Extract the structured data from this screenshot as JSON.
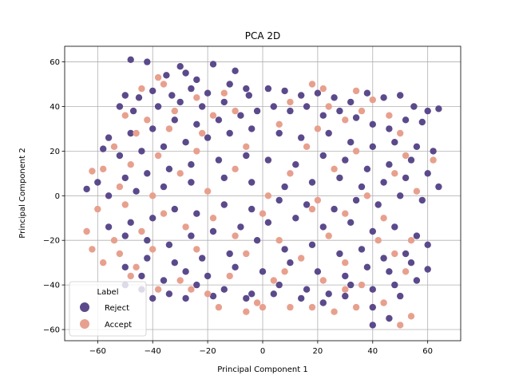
{
  "chart_data": {
    "type": "scatter",
    "title": "PCA 2D",
    "xlabel": "Principal Component 1",
    "ylabel": "Principal Component 2",
    "xlim": [
      -72,
      72
    ],
    "ylim": [
      -65,
      67
    ],
    "xticks": [
      -60,
      -40,
      -20,
      0,
      20,
      40,
      60
    ],
    "yticks": [
      -60,
      -40,
      -20,
      0,
      20,
      40,
      60
    ],
    "grid": true,
    "legend": {
      "title": "Label",
      "placement": "lower-left",
      "entries": [
        "Reject",
        "Accept"
      ]
    },
    "colors": {
      "Reject": "#5b4a8b",
      "Accept": "#e8a08e"
    },
    "series": [
      {
        "name": "Reject",
        "points": [
          [
            -48,
            61
          ],
          [
            -42,
            60
          ],
          [
            -30,
            58
          ],
          [
            -18,
            59
          ],
          [
            -28,
            55
          ],
          [
            -35,
            54
          ],
          [
            -24,
            52
          ],
          [
            -10,
            56
          ],
          [
            -50,
            45
          ],
          [
            -45,
            44
          ],
          [
            -40,
            47
          ],
          [
            -33,
            45
          ],
          [
            -26,
            48
          ],
          [
            -20,
            46
          ],
          [
            -12,
            50
          ],
          [
            -6,
            48
          ],
          [
            -52,
            40
          ],
          [
            -47,
            38
          ],
          [
            -38,
            40
          ],
          [
            -30,
            42
          ],
          [
            -22,
            40
          ],
          [
            -14,
            42
          ],
          [
            -5,
            45
          ],
          [
            2,
            48
          ],
          [
            8,
            47
          ],
          [
            14,
            45
          ],
          [
            20,
            46
          ],
          [
            26,
            44
          ],
          [
            32,
            42
          ],
          [
            38,
            46
          ],
          [
            44,
            44
          ],
          [
            50,
            45
          ],
          [
            55,
            40
          ],
          [
            60,
            38
          ],
          [
            64,
            39
          ],
          [
            58,
            33
          ],
          [
            52,
            34
          ],
          [
            46,
            30
          ],
          [
            40,
            32
          ],
          [
            34,
            35
          ],
          [
            28,
            38
          ],
          [
            22,
            36
          ],
          [
            16,
            40
          ],
          [
            10,
            38
          ],
          [
            4,
            40
          ],
          [
            -2,
            38
          ],
          [
            -8,
            36
          ],
          [
            -16,
            34
          ],
          [
            -24,
            32
          ],
          [
            -32,
            34
          ],
          [
            -40,
            30
          ],
          [
            -48,
            28
          ],
          [
            -56,
            26
          ],
          [
            -58,
            21
          ],
          [
            -52,
            18
          ],
          [
            -44,
            20
          ],
          [
            -36,
            22
          ],
          [
            -28,
            24
          ],
          [
            -20,
            26
          ],
          [
            -12,
            28
          ],
          [
            -4,
            30
          ],
          [
            6,
            28
          ],
          [
            14,
            26
          ],
          [
            24,
            28
          ],
          [
            32,
            24
          ],
          [
            40,
            22
          ],
          [
            48,
            24
          ],
          [
            56,
            22
          ],
          [
            62,
            20
          ],
          [
            54,
            16
          ],
          [
            46,
            14
          ],
          [
            38,
            12
          ],
          [
            30,
            16
          ],
          [
            22,
            18
          ],
          [
            12,
            14
          ],
          [
            2,
            16
          ],
          [
            -6,
            18
          ],
          [
            -16,
            16
          ],
          [
            -26,
            14
          ],
          [
            -34,
            12
          ],
          [
            -42,
            10
          ],
          [
            -50,
            8
          ],
          [
            -60,
            6
          ],
          [
            -64,
            3
          ],
          [
            -56,
            0
          ],
          [
            -46,
            2
          ],
          [
            -36,
            4
          ],
          [
            -26,
            6
          ],
          [
            -14,
            8
          ],
          [
            -4,
            6
          ],
          [
            8,
            4
          ],
          [
            18,
            6
          ],
          [
            28,
            8
          ],
          [
            36,
            4
          ],
          [
            44,
            6
          ],
          [
            52,
            8
          ],
          [
            60,
            10
          ],
          [
            64,
            4
          ],
          [
            58,
            -2
          ],
          [
            50,
            0
          ],
          [
            42,
            -4
          ],
          [
            34,
            -2
          ],
          [
            26,
            -6
          ],
          [
            16,
            -4
          ],
          [
            6,
            -2
          ],
          [
            -4,
            -6
          ],
          [
            -14,
            -4
          ],
          [
            -24,
            -8
          ],
          [
            -32,
            -6
          ],
          [
            -40,
            -10
          ],
          [
            -48,
            -12
          ],
          [
            -56,
            -14
          ],
          [
            -50,
            -18
          ],
          [
            -42,
            -20
          ],
          [
            -34,
            -22
          ],
          [
            -26,
            -18
          ],
          [
            -18,
            -16
          ],
          [
            -8,
            -14
          ],
          [
            2,
            -12
          ],
          [
            12,
            -10
          ],
          [
            22,
            -14
          ],
          [
            32,
            -12
          ],
          [
            40,
            -16
          ],
          [
            48,
            -14
          ],
          [
            56,
            -18
          ],
          [
            60,
            -22
          ],
          [
            52,
            -26
          ],
          [
            44,
            -28
          ],
          [
            36,
            -24
          ],
          [
            28,
            -26
          ],
          [
            18,
            -22
          ],
          [
            8,
            -24
          ],
          [
            -2,
            -20
          ],
          [
            -12,
            -26
          ],
          [
            -22,
            -28
          ],
          [
            -32,
            -30
          ],
          [
            -42,
            -28
          ],
          [
            -50,
            -32
          ],
          [
            -44,
            -36
          ],
          [
            -36,
            -38
          ],
          [
            -28,
            -34
          ],
          [
            -20,
            -36
          ],
          [
            -10,
            -32
          ],
          [
            0,
            -34
          ],
          [
            10,
            -30
          ],
          [
            20,
            -34
          ],
          [
            30,
            -36
          ],
          [
            38,
            -32
          ],
          [
            46,
            -34
          ],
          [
            54,
            -30
          ],
          [
            60,
            -33
          ],
          [
            56,
            -38
          ],
          [
            48,
            -40
          ],
          [
            40,
            -42
          ],
          [
            32,
            -40
          ],
          [
            24,
            -44
          ],
          [
            16,
            -42
          ],
          [
            6,
            -40
          ],
          [
            -4,
            -44
          ],
          [
            -14,
            -42
          ],
          [
            -24,
            -40
          ],
          [
            -34,
            -44
          ],
          [
            -44,
            -42
          ],
          [
            -50,
            -40
          ],
          [
            -40,
            -46
          ],
          [
            -28,
            -46
          ],
          [
            -18,
            -45
          ],
          [
            -6,
            -46
          ],
          [
            4,
            -44
          ],
          [
            14,
            -46
          ],
          [
            22,
            -48
          ],
          [
            30,
            -45
          ],
          [
            40,
            -50
          ],
          [
            46,
            -55
          ],
          [
            40,
            -58
          ],
          [
            50,
            -45
          ]
        ]
      },
      {
        "name": "Accept",
        "points": [
          [
            -38,
            53
          ],
          [
            -44,
            48
          ],
          [
            -36,
            50
          ],
          [
            -24,
            44
          ],
          [
            -14,
            46
          ],
          [
            18,
            50
          ],
          [
            22,
            48
          ],
          [
            34,
            47
          ],
          [
            40,
            43
          ],
          [
            -50,
            36
          ],
          [
            -42,
            34
          ],
          [
            -32,
            38
          ],
          [
            -18,
            36
          ],
          [
            -10,
            38
          ],
          [
            10,
            42
          ],
          [
            24,
            40
          ],
          [
            36,
            38
          ],
          [
            46,
            36
          ],
          [
            -46,
            28
          ],
          [
            -34,
            30
          ],
          [
            -22,
            28
          ],
          [
            6,
            32
          ],
          [
            20,
            30
          ],
          [
            30,
            34
          ],
          [
            50,
            28
          ],
          [
            -54,
            22
          ],
          [
            -38,
            18
          ],
          [
            -24,
            20
          ],
          [
            -6,
            22
          ],
          [
            16,
            22
          ],
          [
            34,
            20
          ],
          [
            52,
            18
          ],
          [
            62,
            16
          ],
          [
            -58,
            12
          ],
          [
            -48,
            14
          ],
          [
            -30,
            10
          ],
          [
            -10,
            12
          ],
          [
            10,
            10
          ],
          [
            26,
            12
          ],
          [
            48,
            10
          ],
          [
            -62,
            11
          ],
          [
            -52,
            4
          ],
          [
            -40,
            0
          ],
          [
            -20,
            2
          ],
          [
            2,
            0
          ],
          [
            20,
            -2
          ],
          [
            38,
            0
          ],
          [
            56,
            2
          ],
          [
            -60,
            -6
          ],
          [
            -50,
            -4
          ],
          [
            -36,
            -8
          ],
          [
            -18,
            -10
          ],
          [
            0,
            -8
          ],
          [
            18,
            -6
          ],
          [
            30,
            -8
          ],
          [
            44,
            -10
          ],
          [
            -64,
            -16
          ],
          [
            -54,
            -20
          ],
          [
            -44,
            -16
          ],
          [
            -28,
            -14
          ],
          [
            -10,
            -18
          ],
          [
            6,
            -20
          ],
          [
            24,
            -18
          ],
          [
            42,
            -20
          ],
          [
            54,
            -20
          ],
          [
            -62,
            -24
          ],
          [
            -52,
            -26
          ],
          [
            -40,
            -24
          ],
          [
            -24,
            -24
          ],
          [
            -6,
            -26
          ],
          [
            14,
            -28
          ],
          [
            30,
            -30
          ],
          [
            48,
            -26
          ],
          [
            -58,
            -30
          ],
          [
            -46,
            -32
          ],
          [
            -30,
            -38
          ],
          [
            -12,
            -36
          ],
          [
            4,
            -38
          ],
          [
            22,
            -38
          ],
          [
            36,
            -40
          ],
          [
            52,
            -34
          ],
          [
            -38,
            -42
          ],
          [
            -20,
            -44
          ],
          [
            -2,
            -48
          ],
          [
            10,
            -50
          ],
          [
            26,
            -52
          ],
          [
            34,
            -50
          ],
          [
            44,
            -48
          ],
          [
            50,
            -58
          ],
          [
            54,
            -54
          ],
          [
            -16,
            -50
          ],
          [
            -6,
            -52
          ],
          [
            0,
            -50
          ],
          [
            18,
            -50
          ],
          [
            30,
            -42
          ],
          [
            -48,
            -36
          ],
          [
            8,
            -34
          ],
          [
            -26,
            -42
          ]
        ]
      }
    ]
  }
}
